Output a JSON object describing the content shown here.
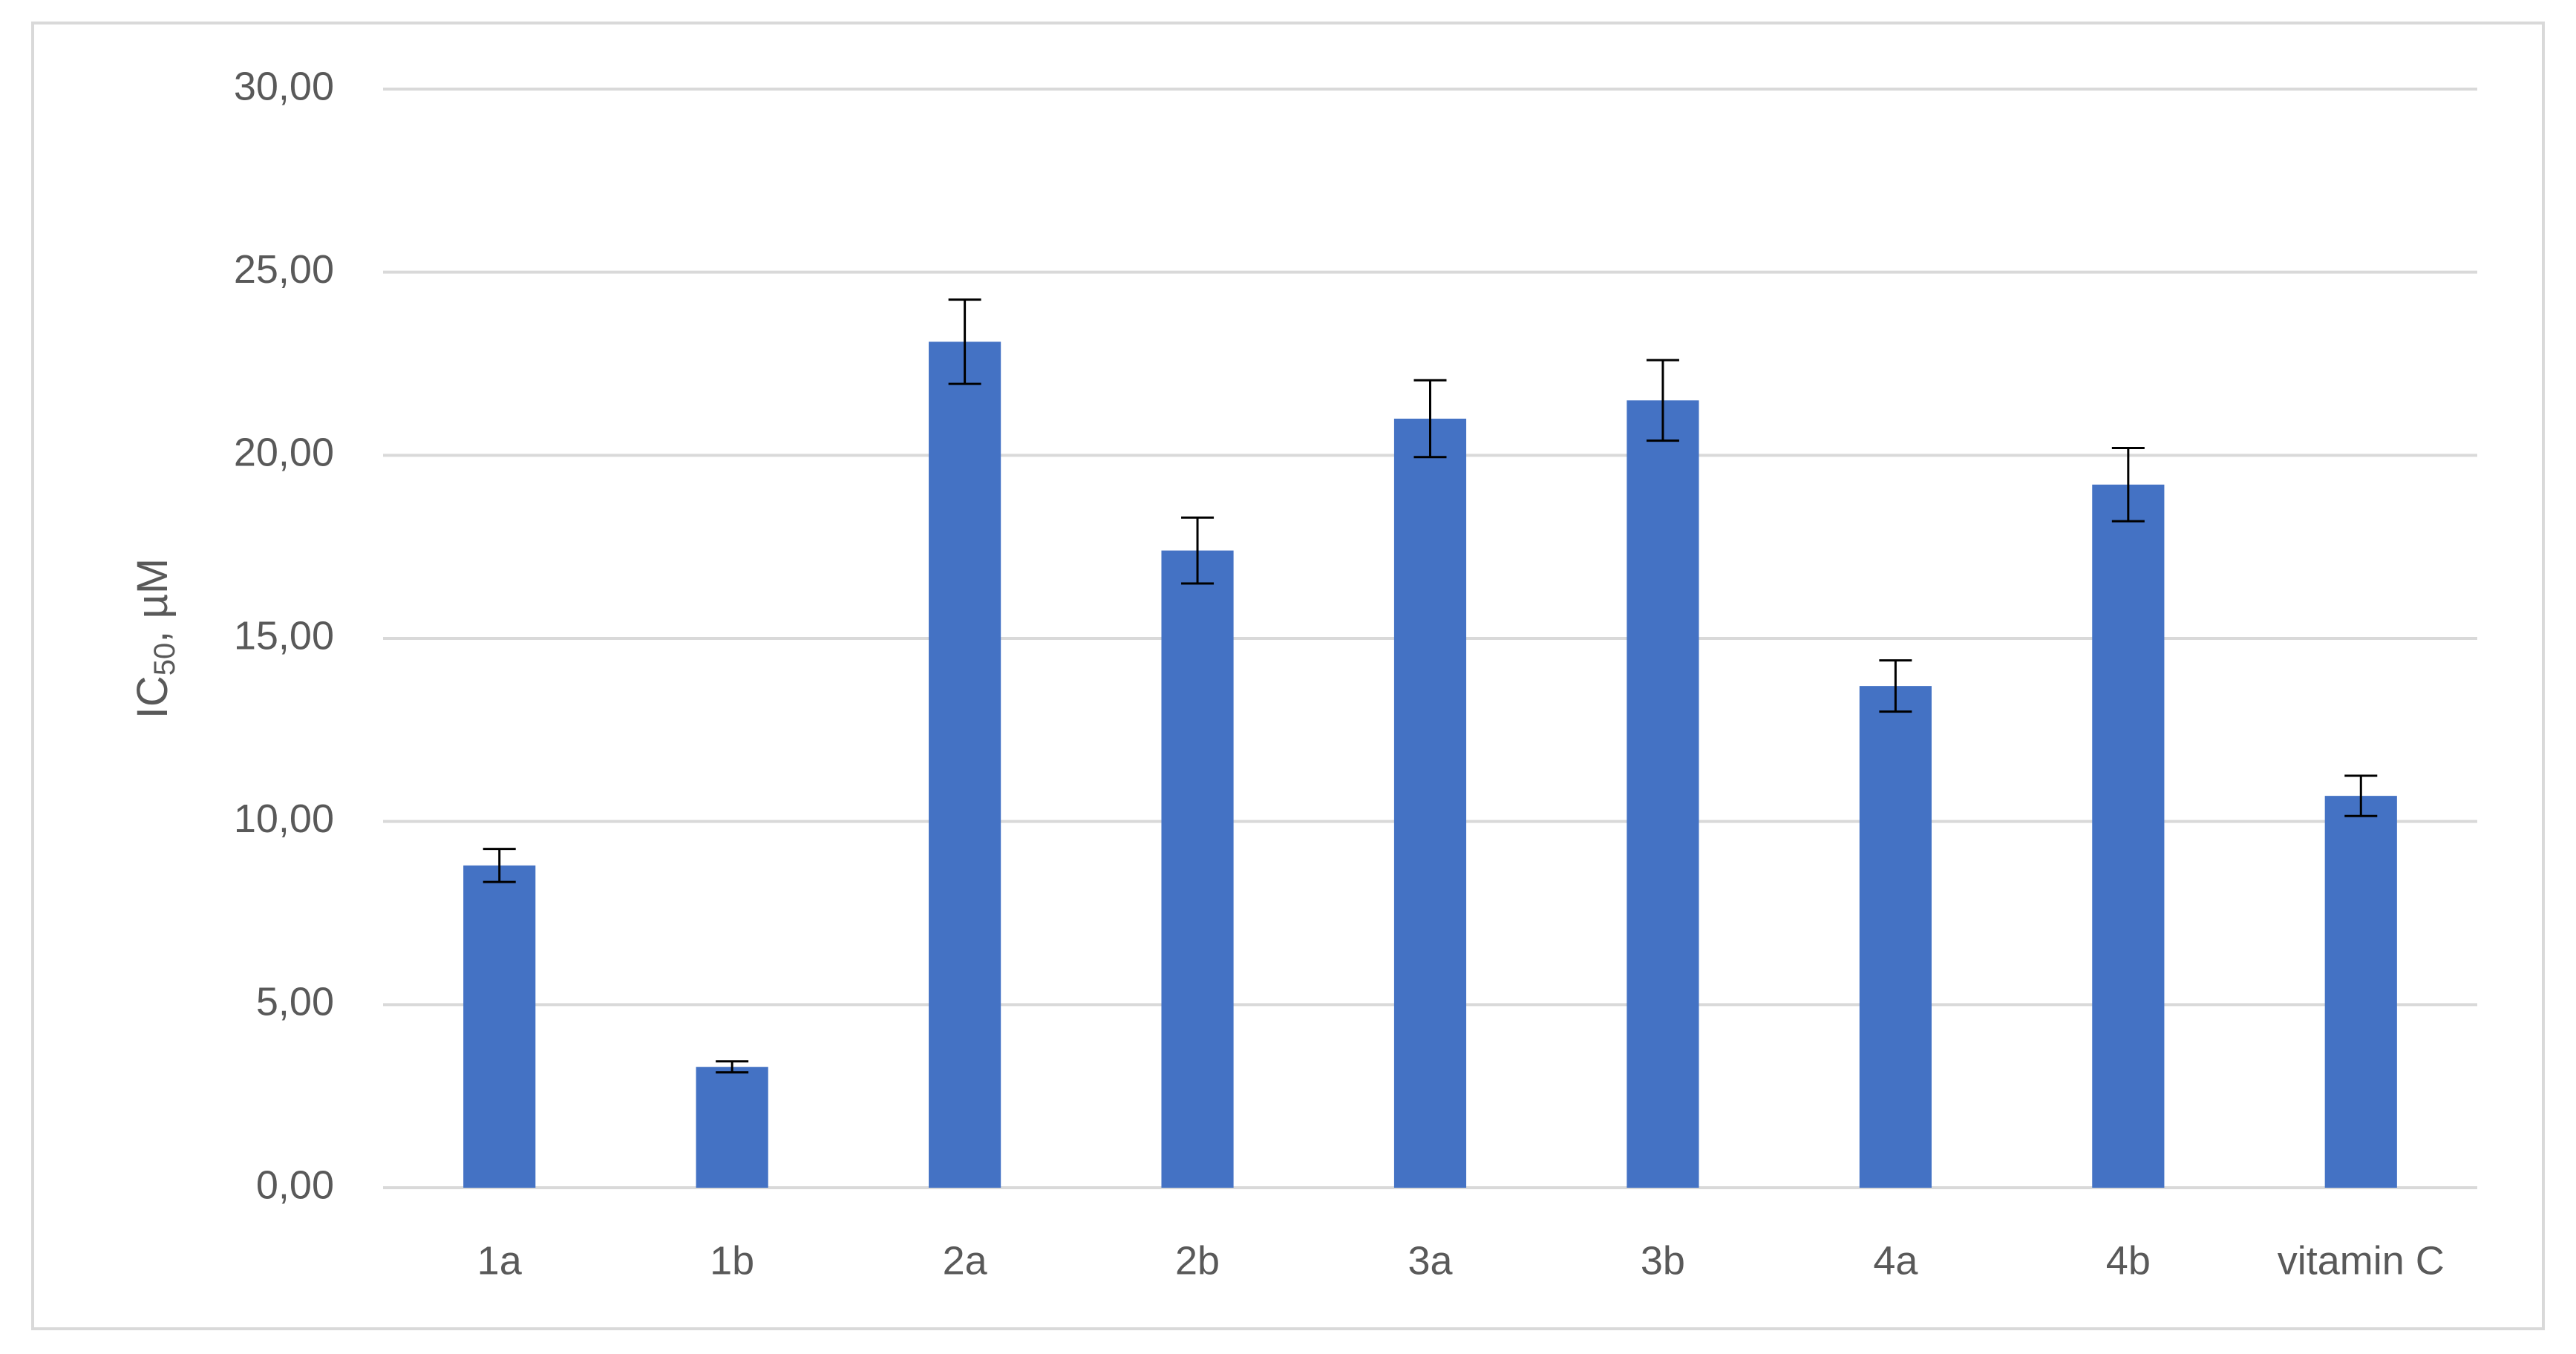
{
  "chart_data": {
    "type": "bar",
    "ylabel": "IC",
    "ylabel_subscript": "50",
    "ylabel_suffix": ", µM",
    "categories": [
      "1a",
      "1b",
      "2a",
      "2b",
      "3a",
      "3b",
      "4a",
      "4b",
      "vitamin C"
    ],
    "values": [
      8.8,
      3.3,
      23.1,
      17.4,
      21.0,
      21.5,
      13.7,
      19.2,
      10.7
    ],
    "errors": [
      0.45,
      0.15,
      1.15,
      0.9,
      1.05,
      1.1,
      0.7,
      1.0,
      0.55
    ],
    "color": "#4472c4",
    "ylim": [
      0,
      30
    ],
    "yticks": [
      {
        "value": 0,
        "label": "0,00"
      },
      {
        "value": 5,
        "label": "5,00"
      },
      {
        "value": 10,
        "label": "10,00"
      },
      {
        "value": 15,
        "label": "15,00"
      },
      {
        "value": 20,
        "label": "20,00"
      },
      {
        "value": 25,
        "label": "25,00"
      },
      {
        "value": 30,
        "label": "30,00"
      }
    ],
    "grid": true
  }
}
